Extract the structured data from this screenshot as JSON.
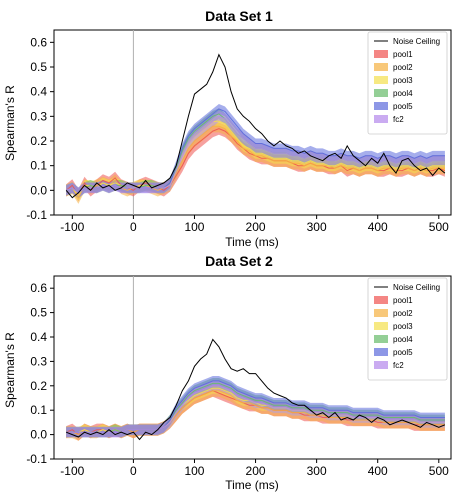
{
  "chart_data": [
    {
      "type": "line",
      "title": "Data Set 1",
      "xlabel": "Time (ms)",
      "ylabel": "Spearman's R",
      "xlim": [
        -130,
        520
      ],
      "ylim": [
        -0.1,
        0.65
      ],
      "xticks": [
        -100,
        0,
        100,
        200,
        300,
        400,
        500
      ],
      "yticks": [
        -0.1,
        0.0,
        0.1,
        0.2,
        0.3,
        0.4,
        0.5,
        0.6
      ],
      "vline_x": 0,
      "legend_position": "top-right",
      "x": [
        -110,
        -100,
        -90,
        -80,
        -70,
        -60,
        -50,
        -40,
        -30,
        -20,
        -10,
        0,
        10,
        20,
        30,
        40,
        50,
        60,
        70,
        80,
        90,
        100,
        110,
        120,
        130,
        140,
        150,
        160,
        170,
        180,
        190,
        200,
        210,
        220,
        230,
        240,
        250,
        260,
        270,
        280,
        290,
        300,
        310,
        320,
        330,
        340,
        350,
        360,
        370,
        380,
        390,
        400,
        410,
        420,
        430,
        440,
        450,
        460,
        470,
        480,
        490,
        500,
        510
      ],
      "noise_ceiling": {
        "name": "Noise Ceiling",
        "color": "#000000",
        "values": [
          0.0,
          -0.03,
          -0.01,
          0.02,
          0.0,
          0.03,
          0.01,
          0.02,
          0.0,
          0.01,
          0.03,
          0.02,
          0.01,
          0.04,
          0.01,
          0.02,
          0.03,
          0.05,
          0.1,
          0.2,
          0.3,
          0.39,
          0.41,
          0.43,
          0.48,
          0.55,
          0.5,
          0.4,
          0.33,
          0.3,
          0.28,
          0.25,
          0.23,
          0.2,
          0.18,
          0.2,
          0.18,
          0.17,
          0.15,
          0.16,
          0.14,
          0.13,
          0.12,
          0.14,
          0.15,
          0.13,
          0.18,
          0.14,
          0.12,
          0.1,
          0.13,
          0.11,
          0.15,
          0.1,
          0.07,
          0.12,
          0.13,
          0.1,
          0.08,
          0.09,
          0.06,
          0.09,
          0.07
        ]
      },
      "series": [
        {
          "name": "pool1",
          "color": "#ef5350",
          "values": [
            0.0,
            0.02,
            -0.02,
            0.03,
            0.0,
            0.02,
            0.04,
            0.03,
            0.05,
            0.02,
            0.01,
            0.0,
            0.02,
            0.03,
            0.02,
            0.01,
            0.0,
            0.02,
            0.06,
            0.1,
            0.15,
            0.18,
            0.2,
            0.22,
            0.24,
            0.25,
            0.24,
            0.22,
            0.19,
            0.17,
            0.15,
            0.14,
            0.13,
            0.13,
            0.12,
            0.12,
            0.12,
            0.11,
            0.1,
            0.1,
            0.11,
            0.1,
            0.1,
            0.09,
            0.09,
            0.1,
            0.08,
            0.09,
            0.08,
            0.09,
            0.09,
            0.08,
            0.08,
            0.09,
            0.08,
            0.08,
            0.09,
            0.08,
            0.09,
            0.08,
            0.08,
            0.09,
            0.08
          ]
        },
        {
          "name": "pool2",
          "color": "#f5b041",
          "values": [
            0.0,
            0.01,
            -0.03,
            0.02,
            0.01,
            0.02,
            0.03,
            0.02,
            0.04,
            0.01,
            0.0,
            0.01,
            0.02,
            0.02,
            0.01,
            0.0,
            0.01,
            0.02,
            0.07,
            0.12,
            0.17,
            0.2,
            0.22,
            0.24,
            0.26,
            0.26,
            0.25,
            0.22,
            0.2,
            0.17,
            0.16,
            0.14,
            0.14,
            0.13,
            0.12,
            0.12,
            0.12,
            0.11,
            0.11,
            0.1,
            0.11,
            0.1,
            0.1,
            0.1,
            0.09,
            0.1,
            0.09,
            0.09,
            0.08,
            0.09,
            0.09,
            0.08,
            0.09,
            0.09,
            0.08,
            0.09,
            0.09,
            0.08,
            0.09,
            0.08,
            0.09,
            0.09,
            0.09
          ]
        },
        {
          "name": "pool3",
          "color": "#f4e04d",
          "values": [
            0.0,
            0.01,
            -0.02,
            0.02,
            0.02,
            0.01,
            0.03,
            0.02,
            0.03,
            0.02,
            0.01,
            0.01,
            0.02,
            0.02,
            0.02,
            0.01,
            0.01,
            0.02,
            0.08,
            0.14,
            0.19,
            0.22,
            0.24,
            0.26,
            0.28,
            0.28,
            0.27,
            0.24,
            0.21,
            0.18,
            0.17,
            0.15,
            0.15,
            0.14,
            0.13,
            0.13,
            0.13,
            0.12,
            0.12,
            0.11,
            0.12,
            0.11,
            0.11,
            0.1,
            0.1,
            0.11,
            0.1,
            0.1,
            0.09,
            0.1,
            0.1,
            0.09,
            0.1,
            0.1,
            0.09,
            0.1,
            0.1,
            0.09,
            0.1,
            0.09,
            0.1,
            0.1,
            0.1
          ]
        },
        {
          "name": "pool4",
          "color": "#66bb6a",
          "values": [
            0.0,
            0.01,
            -0.01,
            0.01,
            0.02,
            0.01,
            0.02,
            0.01,
            0.02,
            0.02,
            0.01,
            0.01,
            0.01,
            0.02,
            0.02,
            0.01,
            0.01,
            0.03,
            0.09,
            0.16,
            0.21,
            0.24,
            0.26,
            0.28,
            0.3,
            0.31,
            0.29,
            0.26,
            0.23,
            0.21,
            0.19,
            0.17,
            0.17,
            0.16,
            0.15,
            0.15,
            0.15,
            0.14,
            0.14,
            0.13,
            0.14,
            0.13,
            0.13,
            0.12,
            0.12,
            0.13,
            0.12,
            0.12,
            0.11,
            0.12,
            0.12,
            0.11,
            0.12,
            0.12,
            0.11,
            0.12,
            0.12,
            0.11,
            0.12,
            0.11,
            0.12,
            0.12,
            0.12
          ]
        },
        {
          "name": "pool5",
          "color": "#5c6bdc",
          "values": [
            0.0,
            0.01,
            -0.01,
            0.01,
            0.01,
            0.01,
            0.02,
            0.01,
            0.02,
            0.01,
            0.01,
            0.01,
            0.01,
            0.01,
            0.01,
            0.01,
            0.01,
            0.03,
            0.1,
            0.17,
            0.22,
            0.25,
            0.27,
            0.29,
            0.31,
            0.33,
            0.32,
            0.29,
            0.26,
            0.23,
            0.21,
            0.19,
            0.19,
            0.18,
            0.17,
            0.17,
            0.17,
            0.16,
            0.16,
            0.15,
            0.16,
            0.15,
            0.15,
            0.14,
            0.14,
            0.15,
            0.14,
            0.14,
            0.13,
            0.14,
            0.14,
            0.13,
            0.14,
            0.14,
            0.13,
            0.14,
            0.14,
            0.13,
            0.14,
            0.13,
            0.14,
            0.14,
            0.14
          ]
        },
        {
          "name": "fc2",
          "color": "#b388eb",
          "values": [
            0.0,
            0.01,
            -0.01,
            0.01,
            0.01,
            0.01,
            0.02,
            0.01,
            0.02,
            0.01,
            0.01,
            0.01,
            0.01,
            0.01,
            0.01,
            0.01,
            0.01,
            0.02,
            0.08,
            0.14,
            0.19,
            0.22,
            0.24,
            0.26,
            0.28,
            0.3,
            0.29,
            0.26,
            0.23,
            0.21,
            0.19,
            0.17,
            0.17,
            0.16,
            0.15,
            0.15,
            0.15,
            0.14,
            0.14,
            0.13,
            0.14,
            0.13,
            0.13,
            0.12,
            0.12,
            0.13,
            0.12,
            0.12,
            0.11,
            0.12,
            0.12,
            0.11,
            0.12,
            0.12,
            0.11,
            0.12,
            0.12,
            0.11,
            0.12,
            0.11,
            0.12,
            0.12,
            0.12
          ]
        }
      ]
    },
    {
      "type": "line",
      "title": "Data Set 2",
      "xlabel": "Time (ms)",
      "ylabel": "Spearman's R",
      "xlim": [
        -130,
        520
      ],
      "ylim": [
        -0.1,
        0.65
      ],
      "xticks": [
        -100,
        0,
        100,
        200,
        300,
        400,
        500
      ],
      "yticks": [
        -0.1,
        0.0,
        0.1,
        0.2,
        0.3,
        0.4,
        0.5,
        0.6
      ],
      "vline_x": 0,
      "legend_position": "top-right",
      "x": [
        -110,
        -100,
        -90,
        -80,
        -70,
        -60,
        -50,
        -40,
        -30,
        -20,
        -10,
        0,
        10,
        20,
        30,
        40,
        50,
        60,
        70,
        80,
        90,
        100,
        110,
        120,
        130,
        140,
        150,
        160,
        170,
        180,
        190,
        200,
        210,
        220,
        230,
        240,
        250,
        260,
        270,
        280,
        290,
        300,
        310,
        320,
        330,
        340,
        350,
        360,
        370,
        380,
        390,
        400,
        410,
        420,
        430,
        440,
        450,
        460,
        470,
        480,
        490,
        500,
        510
      ],
      "noise_ceiling": {
        "name": "Noise Ceiling",
        "color": "#000000",
        "values": [
          0.01,
          0.0,
          -0.01,
          0.01,
          0.0,
          0.01,
          0.0,
          0.02,
          0.0,
          0.01,
          0.0,
          0.01,
          -0.02,
          0.01,
          0.0,
          0.02,
          0.05,
          0.07,
          0.12,
          0.18,
          0.22,
          0.28,
          0.31,
          0.33,
          0.39,
          0.36,
          0.31,
          0.27,
          0.26,
          0.27,
          0.25,
          0.25,
          0.22,
          0.19,
          0.17,
          0.16,
          0.15,
          0.13,
          0.12,
          0.12,
          0.1,
          0.08,
          0.09,
          0.07,
          0.09,
          0.06,
          0.07,
          0.06,
          0.08,
          0.07,
          0.05,
          0.07,
          0.06,
          0.04,
          0.05,
          0.06,
          0.05,
          0.04,
          0.03,
          0.05,
          0.04,
          0.03,
          0.04
        ]
      },
      "series": [
        {
          "name": "pool1",
          "color": "#ef5350",
          "values": [
            0.01,
            0.02,
            0.0,
            0.02,
            0.01,
            0.02,
            0.02,
            0.01,
            0.02,
            0.01,
            0.02,
            0.01,
            0.02,
            0.02,
            0.02,
            0.02,
            0.03,
            0.05,
            0.08,
            0.11,
            0.13,
            0.15,
            0.16,
            0.17,
            0.18,
            0.17,
            0.16,
            0.15,
            0.14,
            0.13,
            0.12,
            0.12,
            0.11,
            0.11,
            0.1,
            0.1,
            0.1,
            0.09,
            0.09,
            0.08,
            0.08,
            0.08,
            0.07,
            0.07,
            0.07,
            0.07,
            0.06,
            0.06,
            0.06,
            0.06,
            0.06,
            0.05,
            0.05,
            0.05,
            0.05,
            0.05,
            0.05,
            0.04,
            0.04,
            0.04,
            0.04,
            0.04,
            0.04
          ]
        },
        {
          "name": "pool2",
          "color": "#f5b041",
          "values": [
            0.01,
            0.01,
            0.0,
            0.02,
            0.01,
            0.01,
            0.02,
            0.01,
            0.02,
            0.01,
            0.02,
            0.01,
            0.02,
            0.02,
            0.02,
            0.02,
            0.03,
            0.05,
            0.08,
            0.11,
            0.13,
            0.15,
            0.16,
            0.17,
            0.18,
            0.18,
            0.17,
            0.16,
            0.14,
            0.13,
            0.13,
            0.12,
            0.11,
            0.11,
            0.1,
            0.1,
            0.1,
            0.09,
            0.09,
            0.09,
            0.08,
            0.08,
            0.08,
            0.07,
            0.07,
            0.07,
            0.07,
            0.06,
            0.06,
            0.06,
            0.06,
            0.06,
            0.05,
            0.05,
            0.05,
            0.05,
            0.05,
            0.05,
            0.04,
            0.04,
            0.04,
            0.04,
            0.04
          ]
        },
        {
          "name": "pool3",
          "color": "#f4e04d",
          "values": [
            0.01,
            0.01,
            0.01,
            0.02,
            0.01,
            0.01,
            0.02,
            0.01,
            0.02,
            0.01,
            0.02,
            0.02,
            0.02,
            0.02,
            0.02,
            0.02,
            0.03,
            0.05,
            0.09,
            0.12,
            0.14,
            0.16,
            0.17,
            0.18,
            0.19,
            0.19,
            0.18,
            0.17,
            0.15,
            0.14,
            0.14,
            0.13,
            0.12,
            0.12,
            0.11,
            0.11,
            0.11,
            0.1,
            0.1,
            0.1,
            0.09,
            0.09,
            0.09,
            0.08,
            0.08,
            0.08,
            0.08,
            0.07,
            0.07,
            0.07,
            0.07,
            0.07,
            0.06,
            0.06,
            0.06,
            0.06,
            0.06,
            0.06,
            0.05,
            0.05,
            0.05,
            0.05,
            0.05
          ]
        },
        {
          "name": "pool4",
          "color": "#66bb6a",
          "values": [
            0.01,
            0.01,
            0.01,
            0.01,
            0.01,
            0.01,
            0.01,
            0.01,
            0.02,
            0.01,
            0.02,
            0.02,
            0.02,
            0.02,
            0.02,
            0.02,
            0.03,
            0.06,
            0.1,
            0.13,
            0.16,
            0.18,
            0.19,
            0.2,
            0.21,
            0.21,
            0.2,
            0.19,
            0.17,
            0.16,
            0.15,
            0.14,
            0.14,
            0.13,
            0.12,
            0.12,
            0.12,
            0.11,
            0.11,
            0.11,
            0.1,
            0.1,
            0.1,
            0.09,
            0.09,
            0.09,
            0.09,
            0.08,
            0.08,
            0.08,
            0.08,
            0.08,
            0.07,
            0.07,
            0.07,
            0.07,
            0.07,
            0.07,
            0.06,
            0.06,
            0.06,
            0.06,
            0.06
          ]
        },
        {
          "name": "pool5",
          "color": "#5c6bdc",
          "values": [
            0.01,
            0.01,
            0.01,
            0.01,
            0.01,
            0.01,
            0.01,
            0.01,
            0.01,
            0.01,
            0.02,
            0.02,
            0.02,
            0.02,
            0.02,
            0.02,
            0.03,
            0.06,
            0.11,
            0.14,
            0.17,
            0.19,
            0.2,
            0.21,
            0.22,
            0.22,
            0.21,
            0.2,
            0.18,
            0.17,
            0.16,
            0.15,
            0.15,
            0.14,
            0.13,
            0.13,
            0.13,
            0.12,
            0.12,
            0.12,
            0.11,
            0.11,
            0.11,
            0.1,
            0.1,
            0.1,
            0.1,
            0.09,
            0.09,
            0.09,
            0.09,
            0.09,
            0.08,
            0.08,
            0.08,
            0.08,
            0.08,
            0.08,
            0.07,
            0.07,
            0.07,
            0.07,
            0.07
          ]
        },
        {
          "name": "fc2",
          "color": "#b388eb",
          "values": [
            0.01,
            0.01,
            0.01,
            0.01,
            0.01,
            0.01,
            0.01,
            0.01,
            0.01,
            0.01,
            0.02,
            0.02,
            0.02,
            0.02,
            0.02,
            0.02,
            0.03,
            0.05,
            0.09,
            0.12,
            0.15,
            0.17,
            0.18,
            0.19,
            0.2,
            0.2,
            0.19,
            0.18,
            0.16,
            0.15,
            0.14,
            0.13,
            0.13,
            0.12,
            0.11,
            0.11,
            0.11,
            0.1,
            0.1,
            0.1,
            0.09,
            0.09,
            0.09,
            0.08,
            0.08,
            0.08,
            0.08,
            0.07,
            0.07,
            0.07,
            0.07,
            0.07,
            0.06,
            0.06,
            0.06,
            0.06,
            0.06,
            0.06,
            0.05,
            0.05,
            0.05,
            0.05,
            0.05
          ]
        }
      ]
    }
  ]
}
